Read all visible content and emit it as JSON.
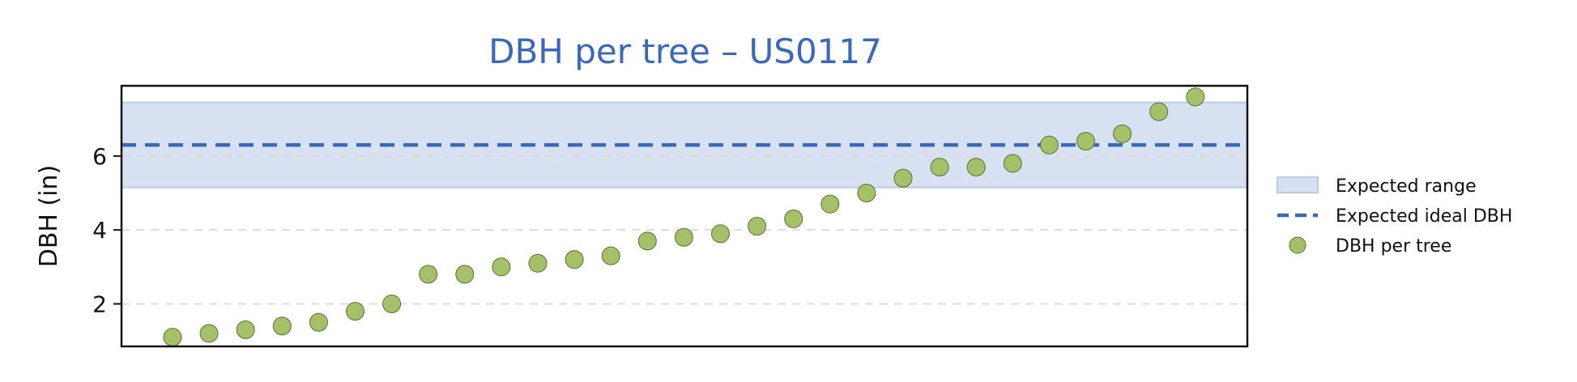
{
  "chart_data": {
    "type": "scatter",
    "title": "DBH per tree – US0117",
    "ylabel": "DBH (in)",
    "xlabel": "",
    "ylim": [
      0.85,
      7.9
    ],
    "yticks": [
      2,
      4,
      6
    ],
    "grid": "horizontal dashed",
    "legend_position": "right",
    "band": {
      "name": "Expected range",
      "y_min": 5.15,
      "y_max": 7.45,
      "color": "#d8e1f1",
      "edge_color": "#b9cbe9"
    },
    "reference_line": {
      "name": "Expected ideal DBH",
      "y": 6.3,
      "color": "#3b69b7",
      "style": "dashed"
    },
    "series": [
      {
        "name": "DBH per tree",
        "color": "#a4c16a",
        "edge_color": "#5b6f35",
        "values": [
          1.1,
          1.2,
          1.3,
          1.4,
          1.5,
          1.8,
          2.0,
          2.8,
          2.8,
          3.0,
          3.1,
          3.2,
          3.3,
          3.7,
          3.8,
          3.9,
          4.1,
          4.3,
          4.7,
          5.0,
          5.4,
          5.7,
          5.7,
          5.8,
          6.3,
          6.4,
          6.6,
          7.2,
          7.6
        ]
      }
    ],
    "legend": {
      "items": [
        {
          "label": "Expected range",
          "kind": "band"
        },
        {
          "label": "Expected ideal DBH",
          "kind": "line"
        },
        {
          "label": "DBH per tree",
          "kind": "marker"
        }
      ]
    }
  }
}
